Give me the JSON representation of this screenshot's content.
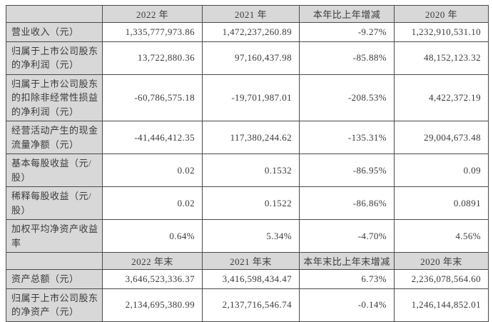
{
  "colors": {
    "header_bg": "#d8d8d8",
    "label_column_bg": "#d8d8d8",
    "value_cell_bg": "#ffffff",
    "border": "#4a4a4a",
    "text": "#3a3a3a"
  },
  "annual_section": {
    "headers": {
      "col0": "",
      "col1": "2022 年",
      "col2": "2021 年",
      "col3": "本年比上年增减",
      "col4": "2020 年"
    },
    "rows": [
      {
        "label": "营业收入（元）",
        "values": [
          "1,335,777,973.86",
          "1,472,237,260.89",
          "-9.27%",
          "1,232,910,531.10"
        ]
      },
      {
        "label": "归属于上市公司股东的净利润（元）",
        "values": [
          "13,722,880.36",
          "97,160,437.98",
          "-85.88%",
          "48,152,123.32"
        ]
      },
      {
        "label": "归属于上市公司股东的扣除非经常性损益的净利润（元）",
        "values": [
          "-60,786,575.18",
          "-19,701,987.01",
          "-208.53%",
          "4,422,372.19"
        ]
      },
      {
        "label": "经营活动产生的现金流量净额（元）",
        "values": [
          "-41,446,412.35",
          "117,380,244.62",
          "-135.31%",
          "29,004,673.48"
        ]
      },
      {
        "label": "基本每股收益（元/股）",
        "values": [
          "0.02",
          "0.1532",
          "-86.95%",
          "0.09"
        ]
      },
      {
        "label": "稀释每股收益（元/股）",
        "values": [
          "0.02",
          "0.1522",
          "-86.86%",
          "0.0891"
        ]
      },
      {
        "label": "加权平均净资产收益率",
        "values": [
          "0.64%",
          "5.34%",
          "-4.70%",
          "4.56%"
        ]
      }
    ]
  },
  "yearend_section": {
    "headers": {
      "col0": "",
      "col1": "2022 年末",
      "col2": "2021 年末",
      "col3": "本年末比上年末增减",
      "col4": "2020 年末"
    },
    "rows": [
      {
        "label": "资产总额（元）",
        "values": [
          "3,646,523,336.37",
          "3,416,598,434.47",
          "6.73%",
          "2,236,078,564.60"
        ]
      },
      {
        "label": "归属于上市公司股东的净资产（元）",
        "values": [
          "2,134,695,380.99",
          "2,137,716,546.74",
          "-0.14%",
          "1,246,144,852.01"
        ]
      }
    ]
  }
}
